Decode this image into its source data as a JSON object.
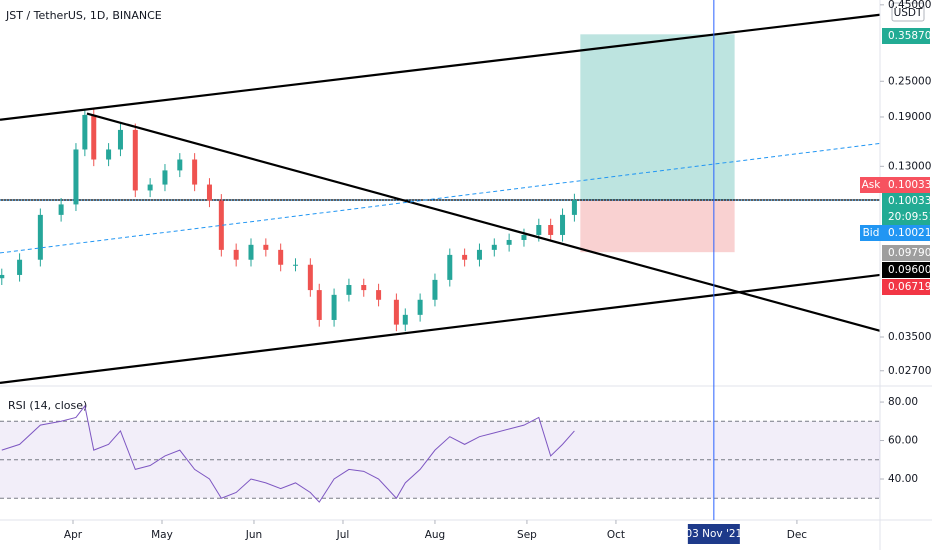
{
  "chart_data": {
    "type": "candlestick",
    "title": "JST / TetherUS, 1D, BINANCE",
    "currency": "USDT",
    "log_scale": true,
    "xlim": [
      -24.6,
      272
    ],
    "ylim": [
      0.0242,
      0.467
    ],
    "xticks": [
      {
        "value": 0,
        "label": "Apr"
      },
      {
        "value": 30,
        "label": "May"
      },
      {
        "value": 61,
        "label": "Jun"
      },
      {
        "value": 91,
        "label": "Jul"
      },
      {
        "value": 122,
        "label": "Aug"
      },
      {
        "value": 153,
        "label": "Sep"
      },
      {
        "value": 183,
        "label": "Oct"
      },
      {
        "value": 244,
        "label": "Dec"
      }
    ],
    "yticks": [
      {
        "value": 0.45,
        "label": "0.45000"
      },
      {
        "value": 0.25,
        "label": "0.25000"
      },
      {
        "value": 0.19,
        "label": "0.19000"
      },
      {
        "value": 0.13,
        "label": "0.13000"
      },
      {
        "value": 0.035,
        "label": "0.03500"
      },
      {
        "value": 0.027,
        "label": "0.02700"
      }
    ],
    "up_color": "#26a69a",
    "down_color": "#ef5350",
    "x": [
      -24,
      -18,
      -11,
      -4,
      1,
      4,
      7,
      12,
      16,
      21,
      26,
      31,
      36,
      41,
      46,
      50,
      55,
      60,
      65,
      70,
      75,
      80,
      83,
      88,
      93,
      98,
      103,
      109,
      112,
      117,
      122,
      127,
      132,
      137,
      142,
      147,
      152,
      157,
      161,
      165,
      169
    ],
    "open": [
      0.055,
      0.0564,
      0.0634,
      0.0895,
      0.097,
      0.148,
      0.193,
      0.137,
      0.148,
      0.172,
      0.108,
      0.113,
      0.126,
      0.137,
      0.113,
      0.1,
      0.0684,
      0.0634,
      0.0711,
      0.0684,
      0.061,
      0.061,
      0.0502,
      0.0399,
      0.0484,
      0.0522,
      0.0502,
      0.0466,
      0.0385,
      0.0415,
      0.0466,
      0.0543,
      0.0658,
      0.0634,
      0.0684,
      0.0711,
      0.0738,
      0.0767,
      0.0828,
      0.0767,
      0.0895
    ],
    "high": [
      0.0592,
      0.0666,
      0.094,
      0.1019,
      0.1554,
      0.2027,
      0.2027,
      0.1554,
      0.1806,
      0.1806,
      0.1187,
      0.1323,
      0.1439,
      0.1439,
      0.1187,
      0.105,
      0.0718,
      0.0747,
      0.0747,
      0.0718,
      0.0641,
      0.0641,
      0.0527,
      0.0508,
      0.0548,
      0.0548,
      0.0527,
      0.0489,
      0.0436,
      0.0489,
      0.057,
      0.0691,
      0.0691,
      0.0718,
      0.0747,
      0.0775,
      0.0805,
      0.0869,
      0.0869,
      0.094,
      0.1053
    ],
    "low": [
      0.0522,
      0.0536,
      0.0602,
      0.085,
      0.0922,
      0.1406,
      0.1302,
      0.1302,
      0.1406,
      0.1026,
      0.1026,
      0.1074,
      0.1197,
      0.1074,
      0.095,
      0.065,
      0.0602,
      0.0602,
      0.065,
      0.058,
      0.058,
      0.0477,
      0.0379,
      0.0379,
      0.046,
      0.0477,
      0.0443,
      0.0366,
      0.0366,
      0.0394,
      0.0443,
      0.0516,
      0.0602,
      0.0602,
      0.065,
      0.0675,
      0.0701,
      0.0729,
      0.0729,
      0.0729,
      0.085
    ],
    "close": [
      0.0564,
      0.0634,
      0.0895,
      0.097,
      0.148,
      0.193,
      0.137,
      0.148,
      0.172,
      0.108,
      0.113,
      0.126,
      0.137,
      0.113,
      0.1,
      0.0684,
      0.0634,
      0.0711,
      0.0684,
      0.061,
      0.061,
      0.0502,
      0.0399,
      0.0484,
      0.0522,
      0.0502,
      0.0466,
      0.0385,
      0.0415,
      0.0466,
      0.0543,
      0.0658,
      0.0634,
      0.0684,
      0.0711,
      0.0738,
      0.0767,
      0.0828,
      0.0767,
      0.0895,
      0.1003
    ],
    "trendlines": [
      {
        "x": [
          -24.6,
          272
        ],
        "y": [
          0.186,
          0.417
        ],
        "color": "#000000",
        "dashed": false
      },
      {
        "x": [
          -24.6,
          272
        ],
        "y": [
          0.0246,
          0.0564
        ],
        "color": "#000000",
        "dashed": false
      },
      {
        "x": [
          4.7,
          272
        ],
        "y": [
          0.195,
          0.0367
        ],
        "color": "#000000",
        "dashed": false
      },
      {
        "x": [
          -24.6,
          272
        ],
        "y": [
          0.0668,
          0.155
        ],
        "color": "#2196f3",
        "dashed": true
      }
    ],
    "position": {
      "x": [
        171,
        223
      ],
      "entry": 0.10033,
      "target": 0.3587,
      "stop": 0.06719,
      "profit_color": "#b2dfdb",
      "loss_color": "#f8c9c9"
    },
    "last_price": 0.10033,
    "crosshair": {
      "x": 216,
      "label": "03 Nov '21"
    },
    "countdown": "20:09:51",
    "price_labels": [
      {
        "value": 0.3587,
        "label": "0.35870",
        "color": "#22ab94"
      },
      {
        "value": 0.10033,
        "label": "0.10033",
        "color": "#f7525f",
        "tag": "Ask"
      },
      {
        "value": 0.10033,
        "label": "0.10033",
        "color": "#22ab94"
      },
      {
        "value": 0.10021,
        "label": "0.10021",
        "color": "#2196f3",
        "tag": "Bid"
      },
      {
        "value": 0.0979,
        "label": "0.09790",
        "color": "#9e9e9e"
      },
      {
        "value": 0.096,
        "label": "0.09600",
        "color": "#000000"
      },
      {
        "value": 0.06719,
        "label": "0.06719",
        "color": "#f23645"
      }
    ],
    "rsi": {
      "title": "RSI (14, close)",
      "color": "#7e57c2",
      "ylim": [
        18.7,
        87.3
      ],
      "yticks": [
        {
          "value": 80,
          "label": "80.00"
        },
        {
          "value": 60,
          "label": "60.00"
        },
        {
          "value": 40,
          "label": "40.00"
        }
      ],
      "bands": [
        70,
        50,
        30
      ],
      "values": [
        55,
        58,
        68,
        70,
        72,
        78,
        55,
        58,
        65,
        45,
        47,
        52,
        55,
        45,
        40,
        30,
        33,
        40,
        38,
        35,
        38,
        33,
        28,
        40,
        45,
        44,
        40,
        30,
        38,
        45,
        55,
        62,
        58,
        62,
        64,
        66,
        68,
        72,
        52,
        58,
        65
      ]
    }
  }
}
